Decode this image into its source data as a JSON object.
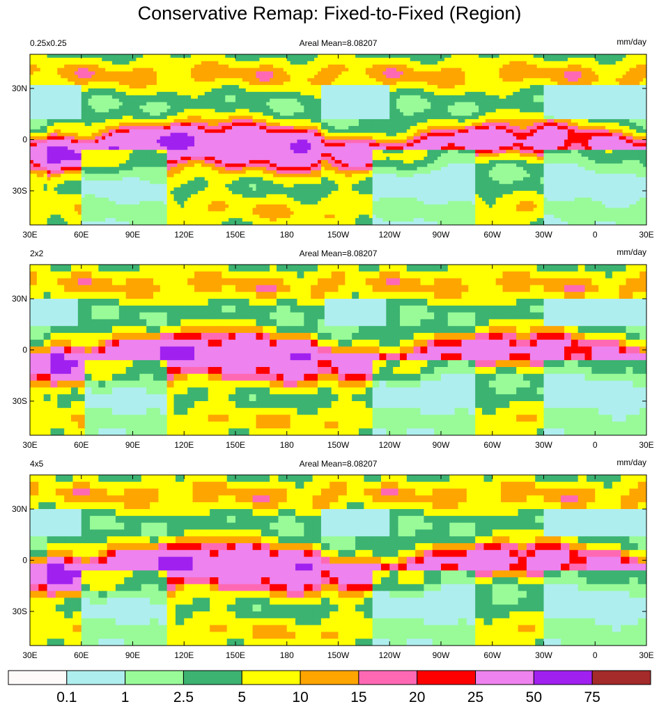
{
  "title": "Conservative Remap: Fixed-to-Fixed (Region)",
  "panels": [
    {
      "left_label": "0.25x0.25",
      "center_label": "Areal Mean=8.08207",
      "right_label": "mm/day"
    },
    {
      "left_label": "2x2",
      "center_label": "Areal Mean=8.08207",
      "right_label": "mm/day"
    },
    {
      "left_label": "4x5",
      "center_label": "Areal Mean=8.08207",
      "right_label": "mm/day"
    }
  ],
  "x_tick_labels": [
    "30E",
    "60E",
    "90E",
    "120E",
    "150E",
    "180",
    "150W",
    "120W",
    "90W",
    "60W",
    "30W",
    "0",
    "30E"
  ],
  "y_tick_labels": [
    "30N",
    "0",
    "30S"
  ],
  "colorbar": {
    "colors": [
      "#fffafa",
      "#afeeee",
      "#98fb98",
      "#3cb371",
      "#ffff00",
      "#ffa500",
      "#ff69b4",
      "#ff0000",
      "#ee82ee",
      "#a020f0",
      "#a52a2a"
    ],
    "levels": [
      0.1,
      1,
      2.5,
      5,
      10,
      15,
      20,
      25,
      50,
      75
    ]
  }
}
